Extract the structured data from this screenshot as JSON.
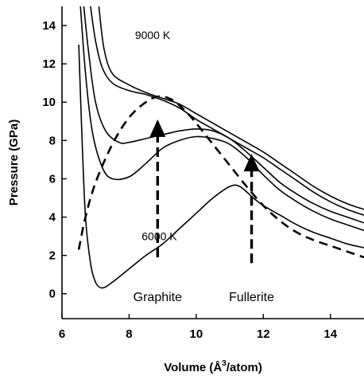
{
  "chart_data": {
    "type": "line",
    "xlabel_main": "Volume (Å",
    "xlabel_sup": "3",
    "xlabel_tail": "/atom)",
    "ylabel": "Pressure (GPa)",
    "xlim": [
      6,
      15
    ],
    "ylim": [
      -1.3,
      15
    ],
    "xticks": [
      6,
      8,
      10,
      12,
      14
    ],
    "yticks": [
      0,
      2,
      4,
      6,
      8,
      10,
      12,
      14
    ],
    "grid": false,
    "legend": "none",
    "series": [
      {
        "style": "solid",
        "points": [
          [
            6.5,
            13
          ],
          [
            6.6,
            8
          ],
          [
            6.7,
            4
          ],
          [
            6.85,
            1.6
          ],
          [
            7.0,
            0.6
          ],
          [
            7.2,
            0.3
          ],
          [
            7.5,
            0.6
          ],
          [
            8.0,
            1.3
          ],
          [
            8.5,
            2.0
          ],
          [
            9.0,
            2.6
          ],
          [
            9.5,
            3.4
          ],
          [
            10.0,
            4.2
          ],
          [
            10.5,
            5.0
          ],
          [
            11.0,
            5.6
          ],
          [
            11.3,
            5.6
          ],
          [
            11.7,
            5.0
          ],
          [
            12.0,
            4.6
          ],
          [
            12.5,
            4.1
          ],
          [
            13.0,
            3.6
          ],
          [
            13.5,
            3.2
          ],
          [
            14.0,
            2.9
          ],
          [
            14.5,
            2.6
          ],
          [
            15.0,
            2.4
          ]
        ]
      },
      {
        "style": "solid",
        "points": [
          [
            6.55,
            15
          ],
          [
            6.7,
            11.5
          ],
          [
            6.9,
            8.5
          ],
          [
            7.2,
            6.6
          ],
          [
            7.5,
            6.0
          ],
          [
            8.0,
            6.1
          ],
          [
            8.5,
            6.8
          ],
          [
            9.0,
            7.6
          ],
          [
            9.5,
            8.0
          ],
          [
            10.0,
            8.2
          ],
          [
            10.5,
            8.1
          ],
          [
            11.0,
            7.8
          ],
          [
            11.5,
            7.1
          ],
          [
            12.0,
            6.2
          ],
          [
            12.5,
            5.4
          ],
          [
            13.0,
            4.8
          ],
          [
            13.5,
            4.3
          ],
          [
            14.0,
            3.9
          ],
          [
            14.5,
            3.6
          ],
          [
            15.0,
            3.3
          ]
        ]
      },
      {
        "style": "solid",
        "points": [
          [
            6.65,
            15
          ],
          [
            6.8,
            12.5
          ],
          [
            7.0,
            10
          ],
          [
            7.3,
            8.5
          ],
          [
            7.7,
            7.9
          ],
          [
            8.0,
            7.9
          ],
          [
            8.5,
            8.1
          ],
          [
            9.0,
            8.3
          ],
          [
            9.5,
            8.5
          ],
          [
            10.0,
            8.6
          ],
          [
            10.5,
            8.5
          ],
          [
            11.0,
            8.1
          ],
          [
            11.5,
            7.4
          ],
          [
            12.0,
            6.6
          ],
          [
            12.5,
            5.8
          ],
          [
            13.0,
            5.2
          ],
          [
            13.5,
            4.7
          ],
          [
            14.0,
            4.3
          ],
          [
            14.5,
            4.0
          ],
          [
            15.0,
            3.7
          ]
        ]
      },
      {
        "style": "solid",
        "points": [
          [
            6.85,
            15
          ],
          [
            7.0,
            13.2
          ],
          [
            7.2,
            11.8
          ],
          [
            7.5,
            11.0
          ],
          [
            8.0,
            10.6
          ],
          [
            8.5,
            10.4
          ],
          [
            9.0,
            10.1
          ],
          [
            9.5,
            9.7
          ],
          [
            10.0,
            9.1
          ],
          [
            10.5,
            8.6
          ],
          [
            11.0,
            8.1
          ],
          [
            11.5,
            7.6
          ],
          [
            12.0,
            7.1
          ],
          [
            12.5,
            6.5
          ],
          [
            13.0,
            5.9
          ],
          [
            13.5,
            5.3
          ],
          [
            14.0,
            4.8
          ],
          [
            14.5,
            4.4
          ],
          [
            15.0,
            4.1
          ]
        ]
      },
      {
        "style": "solid",
        "points": [
          [
            7.1,
            15
          ],
          [
            7.25,
            12.8
          ],
          [
            7.5,
            11.5
          ],
          [
            8.0,
            10.9
          ],
          [
            8.5,
            10.5
          ],
          [
            9.0,
            10.2
          ],
          [
            9.5,
            9.9
          ],
          [
            10.0,
            9.4
          ],
          [
            10.5,
            8.9
          ],
          [
            11.0,
            8.4
          ],
          [
            11.5,
            7.9
          ],
          [
            12.0,
            7.4
          ],
          [
            12.5,
            6.8
          ],
          [
            13.0,
            6.2
          ],
          [
            13.5,
            5.6
          ],
          [
            14.0,
            5.1
          ],
          [
            14.5,
            4.7
          ],
          [
            15.0,
            4.4
          ]
        ]
      },
      {
        "style": "dashed",
        "points": [
          [
            6.5,
            2.3
          ],
          [
            6.7,
            4.0
          ],
          [
            7.0,
            5.8
          ],
          [
            7.5,
            7.8
          ],
          [
            8.0,
            9.2
          ],
          [
            8.5,
            10.0
          ],
          [
            8.9,
            10.3
          ],
          [
            9.3,
            10.1
          ],
          [
            9.7,
            9.5
          ],
          [
            10.0,
            8.9
          ],
          [
            10.5,
            7.8
          ],
          [
            11.0,
            6.7
          ],
          [
            11.5,
            5.6
          ],
          [
            12.0,
            4.6
          ],
          [
            12.5,
            3.8
          ],
          [
            13.0,
            3.2
          ],
          [
            13.5,
            2.8
          ],
          [
            14.0,
            2.5
          ],
          [
            14.5,
            2.2
          ],
          [
            15.0,
            1.9
          ]
        ]
      }
    ],
    "temperature_labels": [
      {
        "text": "9000 K",
        "x": 8.7,
        "y": 13.5
      },
      {
        "text": "6000 K",
        "x": 8.9,
        "y": 3.0
      }
    ],
    "arrows": [
      {
        "label": "Graphite",
        "x": 8.85,
        "y_from": 1.9,
        "y_to": 9.1
      },
      {
        "label": "Fullerite",
        "x": 11.65,
        "y_from": 1.6,
        "y_to": 7.3
      }
    ]
  }
}
